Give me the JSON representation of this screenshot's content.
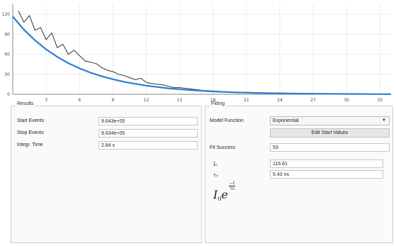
{
  "plot": {
    "y_ticks": [
      "0",
      "30",
      "60",
      "90",
      "120"
    ],
    "x_ticks": [
      "3",
      "6",
      "9",
      "12",
      "15",
      "18",
      "21",
      "24",
      "27",
      "30",
      "33"
    ],
    "data_color": "#333333",
    "fit_color": "#2a7fd4"
  },
  "chart_data": {
    "type": "line",
    "title": "",
    "xlabel": "",
    "ylabel": "",
    "xlim": [
      0,
      34
    ],
    "ylim": [
      0,
      135
    ],
    "series": [
      {
        "kind": "histogram",
        "x": [
          0.5,
          1.0,
          1.5,
          2.0,
          2.5,
          3.0,
          3.5,
          4.0,
          4.5,
          5.0,
          5.5,
          6.0,
          6.5,
          7.0,
          7.5,
          8.0,
          8.5,
          9.0,
          9.5,
          10.0,
          10.5,
          11.0,
          11.5,
          12.0,
          12.5,
          13.0,
          13.5,
          14.0,
          14.5,
          15.0,
          16.0,
          17.0,
          18.0,
          19.0,
          20.0,
          21.0,
          22.0,
          24.0,
          26.0,
          28.0,
          30.0,
          32.0,
          34.0
        ],
        "values": [
          125,
          108,
          118,
          96,
          100,
          82,
          92,
          70,
          75,
          60,
          66,
          58,
          50,
          48,
          46,
          40,
          36,
          34,
          30,
          28,
          25,
          22,
          24,
          18,
          16,
          15,
          14,
          12,
          10,
          10,
          8,
          6,
          5,
          4,
          3,
          3,
          2,
          2,
          1,
          1,
          1,
          0,
          0
        ]
      },
      {
        "kind": "fit",
        "I0": 116.61,
        "tau": 5.43,
        "x": [
          0,
          1,
          2,
          3,
          4,
          5,
          6,
          7,
          8,
          9,
          10,
          12,
          14,
          16,
          18,
          20,
          22,
          24,
          26,
          28,
          30,
          32,
          34
        ],
        "values": [
          116.6,
          97.1,
          80.9,
          67.4,
          56.1,
          46.7,
          38.9,
          32.4,
          27.0,
          22.5,
          18.7,
          13.0,
          8.9,
          6.2,
          4.3,
          2.9,
          2.0,
          1.4,
          1.0,
          0.7,
          0.5,
          0.3,
          0.2
        ]
      }
    ]
  },
  "results": {
    "title": "Results",
    "rows": [
      {
        "label": "Start Events",
        "value": "9.643e+05"
      },
      {
        "label": "Stop Events",
        "value": "9.634e+05"
      },
      {
        "label": "Integr. Time",
        "value": "2.84 s"
      }
    ]
  },
  "fitting": {
    "title": "Fitting",
    "model_label": "Model Function",
    "model_value": "Exponential",
    "edit_button": "Edit Start Values",
    "success_label": "Fit Success",
    "success_value": "53",
    "params": [
      {
        "label": "I₀",
        "value": "116.61"
      },
      {
        "label": "τ₀",
        "value": "5.43 ns"
      }
    ],
    "formula_base": "I",
    "formula_sub": "0",
    "formula_e": "e",
    "formula_num": "−t",
    "formula_den": "τ",
    "formula_den_sub": "0"
  }
}
